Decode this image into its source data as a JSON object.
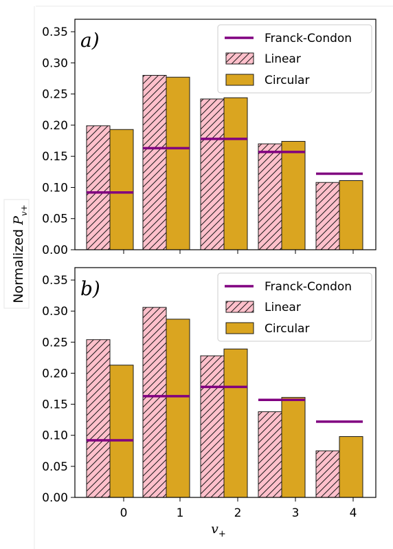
{
  "chart_data": [
    {
      "type": "bar",
      "panel_label": "a)",
      "categories": [
        "0",
        "1",
        "2",
        "3",
        "4"
      ],
      "series": [
        {
          "name": "Linear",
          "values": [
            0.199,
            0.28,
            0.242,
            0.17,
            0.108
          ],
          "color": "#ffc0cb",
          "hatch": "diagonal"
        },
        {
          "name": "Circular",
          "values": [
            0.193,
            0.277,
            0.244,
            0.174,
            0.111
          ],
          "color": "#daa520"
        }
      ],
      "franck_condon": {
        "name": "Franck-Condon",
        "values": [
          0.092,
          0.163,
          0.178,
          0.157,
          0.122
        ],
        "color": "#800080"
      },
      "ylim": [
        0,
        0.37
      ],
      "yticks": [
        "0.00",
        "0.05",
        "0.10",
        "0.15",
        "0.20",
        "0.25",
        "0.30",
        "0.35"
      ],
      "legend_position": "top-right"
    },
    {
      "type": "bar",
      "panel_label": "b)",
      "categories": [
        "0",
        "1",
        "2",
        "3",
        "4"
      ],
      "series": [
        {
          "name": "Linear",
          "values": [
            0.254,
            0.306,
            0.228,
            0.138,
            0.075
          ],
          "color": "#ffc0cb",
          "hatch": "diagonal"
        },
        {
          "name": "Circular",
          "values": [
            0.213,
            0.287,
            0.239,
            0.161,
            0.098
          ],
          "color": "#daa520"
        }
      ],
      "franck_condon": {
        "name": "Franck-Condon",
        "values": [
          0.092,
          0.163,
          0.178,
          0.157,
          0.122
        ],
        "color": "#800080"
      },
      "ylim": [
        0,
        0.37
      ],
      "yticks": [
        "0.00",
        "0.05",
        "0.10",
        "0.15",
        "0.20",
        "0.25",
        "0.30",
        "0.35"
      ],
      "legend_position": "top-right"
    }
  ],
  "shared_axes": {
    "ylabel_prefix": "Normalized ",
    "ylabel_var": "P",
    "ylabel_sub": "v+",
    "xlabel_var": "v",
    "xlabel_sub": "+"
  }
}
